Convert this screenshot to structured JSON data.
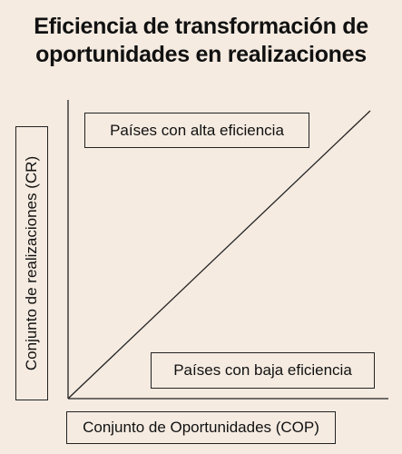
{
  "title": {
    "line1": "Eficiencia de transformación de",
    "line2": "oportunidades en realizaciones"
  },
  "regions": {
    "high": "Países con alta eficiencia",
    "low": "Países con baja eficiencia"
  },
  "axes": {
    "x_label": "Conjunto de Oportunidades (COP)",
    "y_label": "Conjunto de realizaciones (CR)"
  },
  "colors": {
    "background": "#f5ebe1",
    "ink": "#111111"
  }
}
